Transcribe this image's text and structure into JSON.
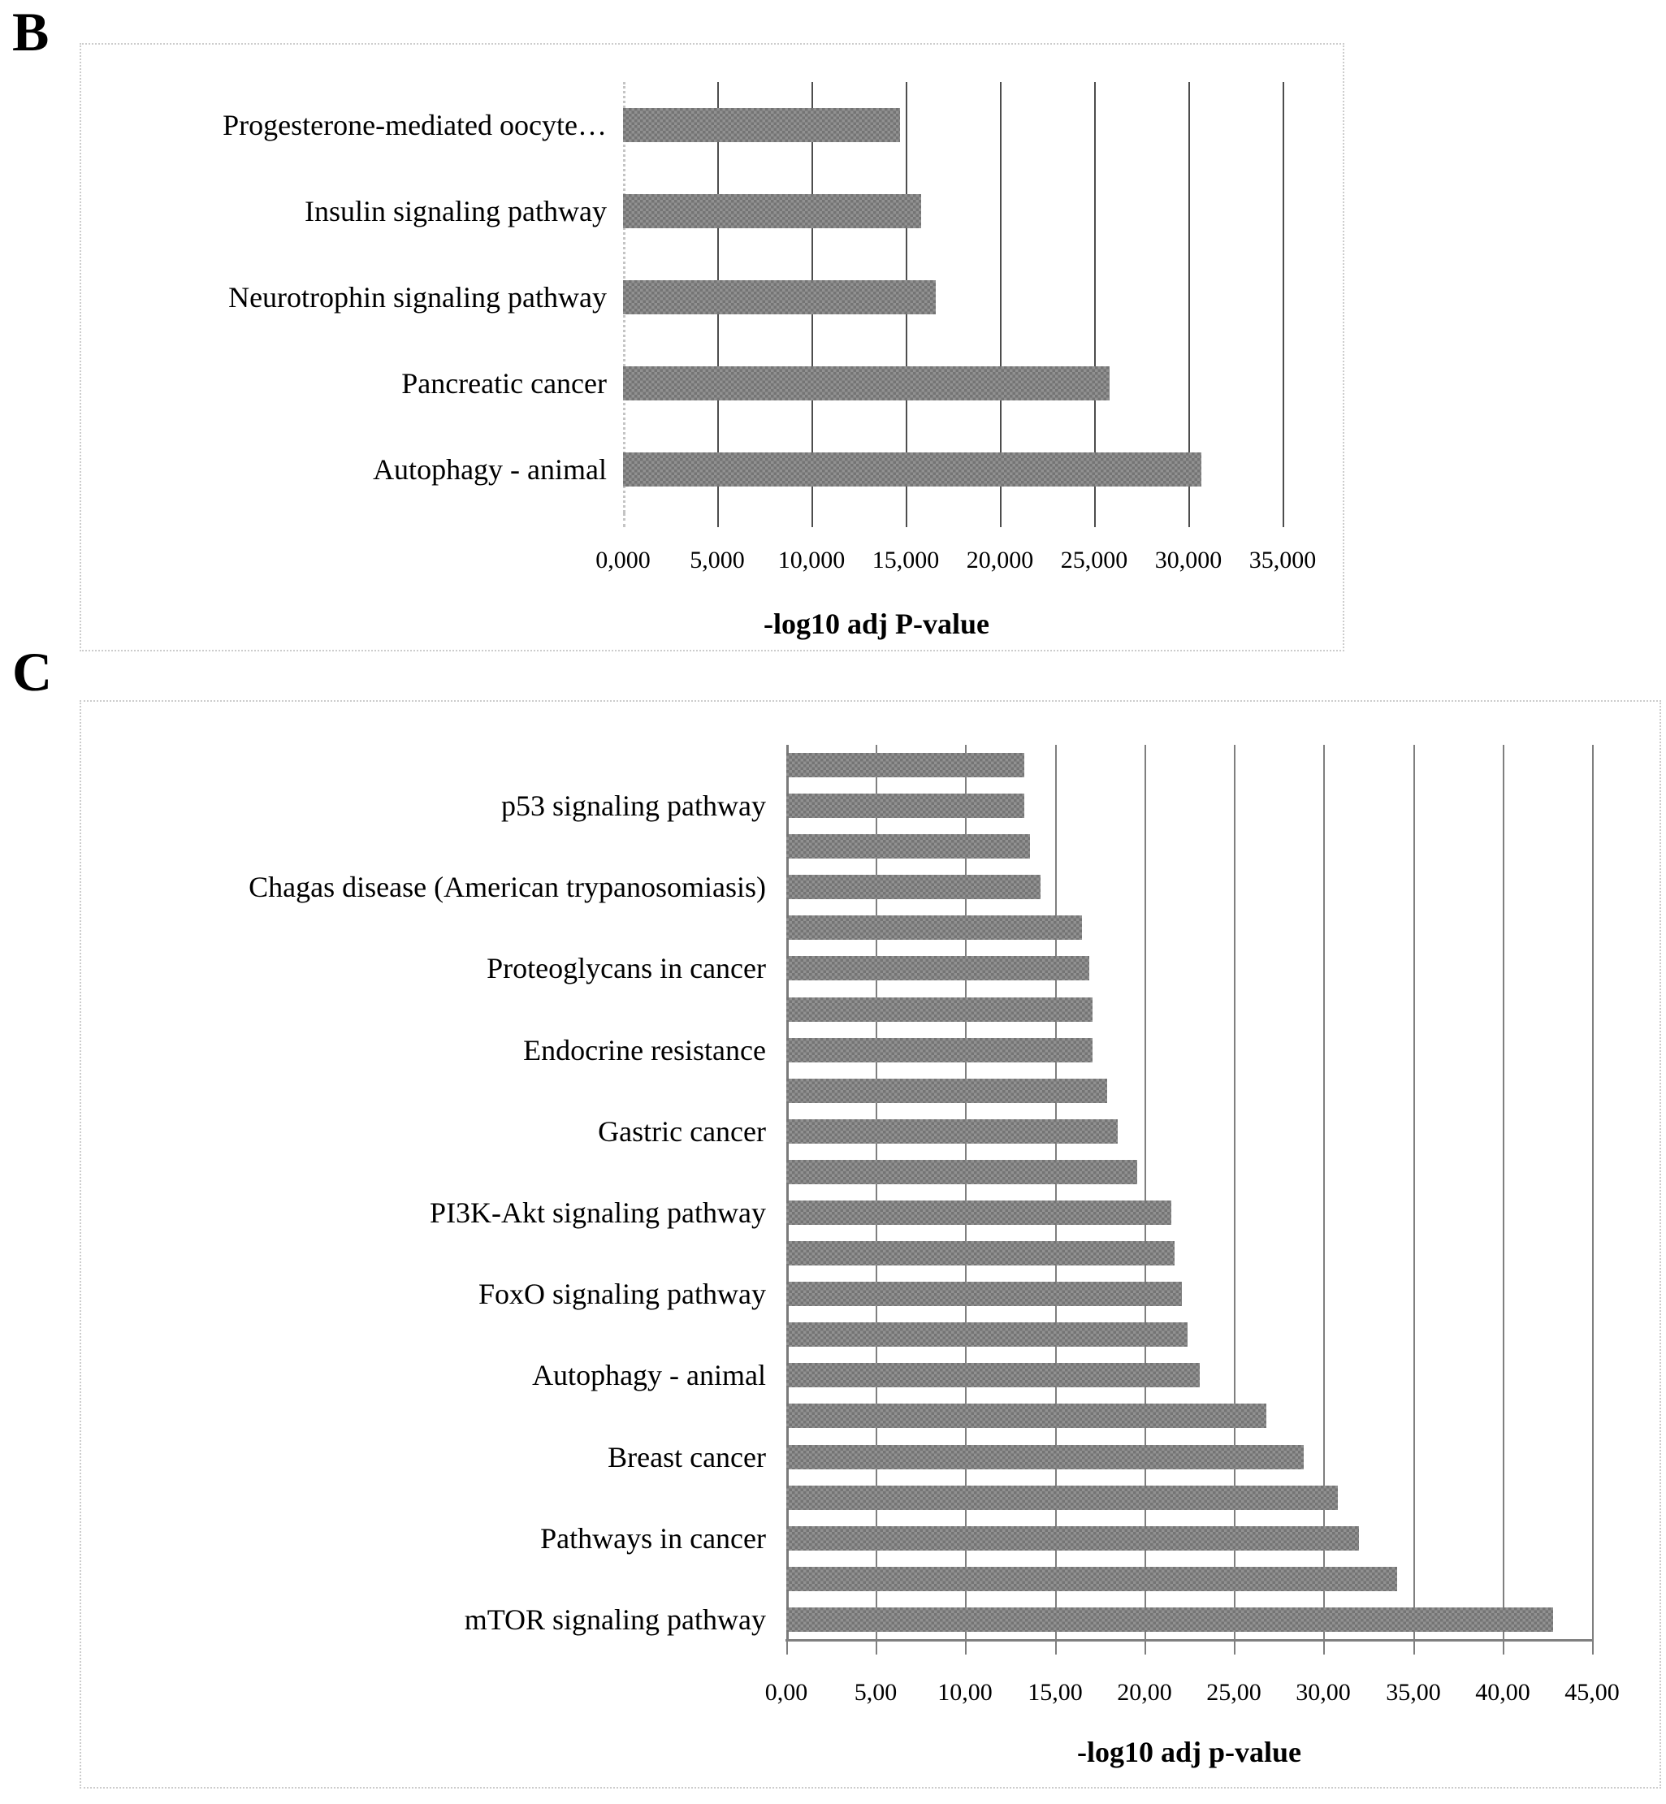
{
  "figure": {
    "panel_b": {
      "letter": "B"
    },
    "panel_c": {
      "letter": "C"
    }
  },
  "chart_data": [
    {
      "id": "b",
      "type": "bar",
      "orientation": "horizontal",
      "title": "",
      "xlabel": "-log10 adj P-value",
      "categories": [
        "Progesterone-mediated oocyte…",
        "Insulin signaling pathway",
        "Neurotrophin signaling pathway",
        "Pancreatic cancer",
        "Autophagy - animal"
      ],
      "values": [
        14.7,
        15.8,
        16.6,
        25.8,
        30.7
      ],
      "x_tick_labels": [
        "0,000",
        "5,000",
        "10,000",
        "15,000",
        "20,000",
        "25,000",
        "30,000",
        "35,000"
      ],
      "xlim": [
        0,
        35
      ],
      "grid": true,
      "legend": false,
      "bar_color": "#828282"
    },
    {
      "id": "c",
      "type": "bar",
      "orientation": "horizontal",
      "title": "",
      "xlabel": "-log10 adj p-value",
      "categories": [
        "",
        "p53 signaling pathway",
        "",
        "Chagas disease (American trypanosomiasis)",
        "",
        "Proteoglycans in cancer",
        "",
        "Endocrine resistance",
        "",
        "Gastric cancer",
        "",
        "PI3K-Akt signaling pathway",
        "",
        "FoxO signaling pathway",
        "",
        "Autophagy - animal",
        "",
        "Breast cancer",
        "",
        "Pathways in cancer",
        "",
        "mTOR signaling pathway"
      ],
      "values": [
        13.3,
        13.3,
        13.6,
        14.2,
        16.5,
        16.9,
        17.1,
        17.1,
        17.9,
        18.5,
        19.6,
        21.5,
        21.7,
        22.1,
        22.4,
        23.1,
        26.8,
        28.9,
        30.8,
        32.0,
        34.1,
        42.8
      ],
      "x_tick_labels": [
        "0,00",
        "5,00",
        "10,00",
        "15,00",
        "20,00",
        "25,00",
        "30,00",
        "35,00",
        "40,00",
        "45,00"
      ],
      "xlim": [
        0,
        45
      ],
      "grid": true,
      "legend": false,
      "bar_color": "#828282"
    }
  ]
}
